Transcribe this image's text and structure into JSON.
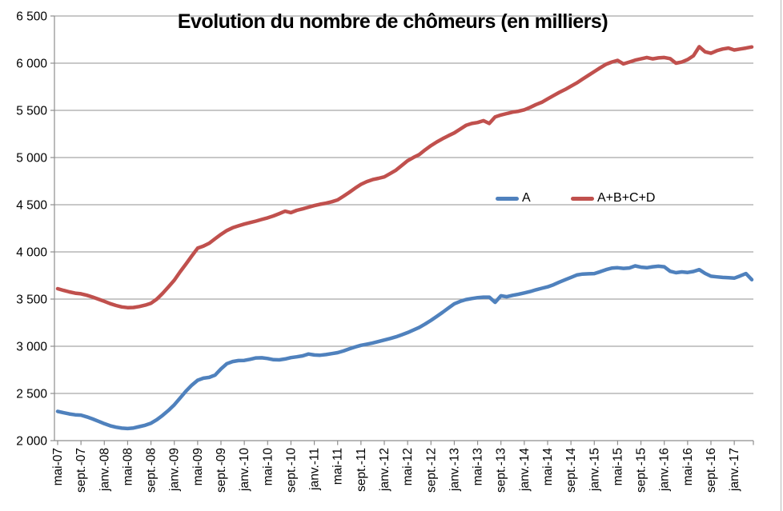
{
  "chart_data": {
    "type": "line",
    "title": "Evolution du nombre de chômeurs (en milliers)",
    "xlabel": "",
    "ylabel": "",
    "ylim": [
      2000,
      6500
    ],
    "y_tick_values": [
      6500,
      6000,
      5500,
      5000,
      4500,
      4000,
      3500,
      3000,
      2500,
      2000
    ],
    "y_tick_labels": [
      "6 500",
      "6 000",
      "5 500",
      "5 000",
      "4 500",
      "4 000",
      "3 500",
      "3 000",
      "2 500",
      "2 000"
    ],
    "x_tick_labels": [
      "mai-07",
      "sept.-07",
      "janv.-08",
      "mai-08",
      "sept.-08",
      "janv.-09",
      "mai-09",
      "sept.-09",
      "janv.-10",
      "mai-10",
      "sept.-10",
      "janv.-11",
      "mai-11",
      "sept.-11",
      "janv.-12",
      "mai-12",
      "sept.-12",
      "janv.-13",
      "mai-13",
      "sept.-13",
      "janv.-14",
      "mai-14",
      "sept.-14",
      "janv.-15",
      "mai-15",
      "sept.-15",
      "janv.-16",
      "mai-16",
      "sept.-16",
      "janv.-17"
    ],
    "x_tick_month_interval": 4,
    "months_total": 120,
    "grid": "horizontal",
    "grid_color": "#A6A6A6",
    "axis_color": "#8E8E8E",
    "legend_position": "inside-right",
    "series": [
      {
        "name": "A",
        "color": "#4F81BD",
        "values": [
          2310,
          2296,
          2283,
          2274,
          2270,
          2252,
          2230,
          2205,
          2180,
          2158,
          2142,
          2132,
          2128,
          2134,
          2148,
          2163,
          2185,
          2222,
          2268,
          2320,
          2380,
          2452,
          2525,
          2588,
          2640,
          2662,
          2670,
          2695,
          2760,
          2815,
          2838,
          2848,
          2850,
          2862,
          2876,
          2878,
          2870,
          2858,
          2856,
          2865,
          2880,
          2888,
          2898,
          2918,
          2908,
          2905,
          2912,
          2922,
          2932,
          2950,
          2972,
          2992,
          3010,
          3022,
          3035,
          3050,
          3066,
          3082,
          3100,
          3122,
          3145,
          3172,
          3200,
          3236,
          3275,
          3317,
          3360,
          3405,
          3450,
          3475,
          3495,
          3506,
          3515,
          3520,
          3520,
          3465,
          3535,
          3525,
          3540,
          3552,
          3565,
          3580,
          3598,
          3614,
          3630,
          3652,
          3680,
          3705,
          3730,
          3755,
          3765,
          3768,
          3770,
          3790,
          3812,
          3828,
          3832,
          3825,
          3830,
          3852,
          3838,
          3832,
          3842,
          3848,
          3842,
          3795,
          3780,
          3788,
          3782,
          3792,
          3812,
          3772,
          3742,
          3736,
          3730,
          3726,
          3722,
          3745,
          3770,
          3706
        ]
      },
      {
        "name": "A+B+C+D",
        "color": "#C0504D",
        "values": [
          3610,
          3592,
          3576,
          3563,
          3556,
          3541,
          3521,
          3499,
          3476,
          3452,
          3432,
          3417,
          3409,
          3411,
          3421,
          3436,
          3456,
          3500,
          3560,
          3629,
          3700,
          3789,
          3872,
          3958,
          4040,
          4062,
          4092,
          4140,
          4186,
          4226,
          4256,
          4276,
          4295,
          4311,
          4326,
          4344,
          4361,
          4381,
          4406,
          4431,
          4416,
          4441,
          4456,
          4474,
          4491,
          4505,
          4516,
          4531,
          4551,
          4590,
          4631,
          4675,
          4716,
          4745,
          4766,
          4780,
          4795,
          4830,
          4866,
          4916,
          4966,
          5001,
          5031,
          5081,
          5126,
          5165,
          5200,
          5231,
          5261,
          5301,
          5341,
          5361,
          5371,
          5391,
          5361,
          5430,
          5451,
          5466,
          5481,
          5491,
          5506,
          5531,
          5561,
          5586,
          5621,
          5656,
          5691,
          5721,
          5756,
          5791,
          5831,
          5871,
          5911,
          5951,
          5988,
          6012,
          6030,
          5992,
          6012,
          6032,
          6046,
          6060,
          6046,
          6056,
          6060,
          6048,
          6000,
          6012,
          6038,
          6078,
          6175,
          6120,
          6105,
          6132,
          6150,
          6160,
          6140,
          6150,
          6160,
          6172
        ]
      }
    ]
  }
}
